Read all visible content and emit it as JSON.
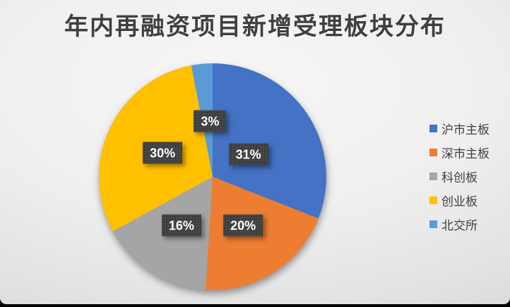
{
  "chart_data": {
    "type": "pie",
    "title": "年内再融资项目新增受理板块分布",
    "categories": [
      "沪市主板",
      "深市主板",
      "科创板",
      "创业板",
      "北交所"
    ],
    "values": [
      31,
      20,
      16,
      30,
      3
    ],
    "unit": "%",
    "data_labels": [
      "31%",
      "20%",
      "16%",
      "30%",
      "3%"
    ],
    "colors": [
      "#4472C4",
      "#ED7D31",
      "#A5A5A5",
      "#FFC000",
      "#5B9BD5"
    ],
    "start_position": "12-o-clock",
    "direction": "clockwise",
    "legend_position": "right",
    "title_color": "#3F3F3F",
    "legend_text_color": "#404040",
    "label_box_color": "#3E3E3E",
    "label_text_color": "#FFFFFF",
    "background_color": "#ECECEC",
    "bottom_bar_color": "#000000"
  }
}
